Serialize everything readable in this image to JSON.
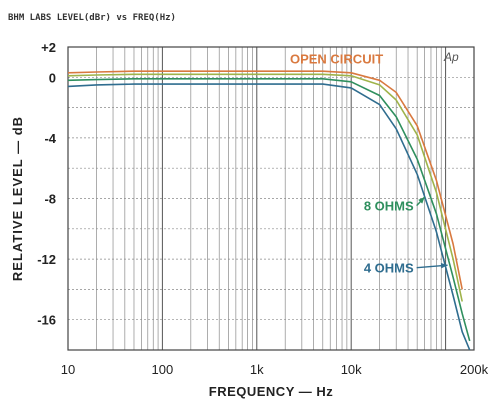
{
  "chart_data": {
    "type": "line",
    "header": "BHM LABS   LEVEL(dBr) vs FREQ(Hz)",
    "watermark": "Ap",
    "xlabel": "FREQUENCY — Hz",
    "ylabel": "RELATIVE LEVEL — dB",
    "x_scale": "log",
    "xlim": [
      10,
      200000
    ],
    "ylim": [
      -18,
      2
    ],
    "x_ticks": [
      {
        "value": 10,
        "label": "10"
      },
      {
        "value": 100,
        "label": "100"
      },
      {
        "value": 1000,
        "label": "1k"
      },
      {
        "value": 10000,
        "label": "10k"
      },
      {
        "value": 200000,
        "label": "200k"
      }
    ],
    "y_ticks": [
      {
        "value": 2,
        "label": "+2"
      },
      {
        "value": 0,
        "label": "0"
      },
      {
        "value": -4,
        "label": "-4"
      },
      {
        "value": -8,
        "label": "-8"
      },
      {
        "value": -12,
        "label": "-12"
      },
      {
        "value": -16,
        "label": "-16"
      }
    ],
    "grid": true,
    "series": [
      {
        "name": "OPEN CIRCUIT",
        "color": "#d9793f",
        "x": [
          10,
          20,
          50,
          100,
          1000,
          5000,
          10000,
          20000,
          30000,
          50000,
          80000,
          120000,
          150000
        ],
        "y": [
          0.3,
          0.35,
          0.4,
          0.4,
          0.4,
          0.4,
          0.3,
          -0.2,
          -1.0,
          -3.2,
          -6.8,
          -11.0,
          -14.0
        ]
      },
      {
        "name": "",
        "color": "#9fb34a",
        "x": [
          10,
          20,
          50,
          100,
          1000,
          5000,
          10000,
          20000,
          30000,
          50000,
          80000,
          120000,
          150000
        ],
        "y": [
          0.1,
          0.15,
          0.2,
          0.2,
          0.2,
          0.2,
          0.1,
          -0.5,
          -1.5,
          -3.8,
          -7.6,
          -12.0,
          -14.8
        ]
      },
      {
        "name": "8 OHMS",
        "color": "#2f8f5e",
        "x": [
          10,
          20,
          50,
          100,
          1000,
          5000,
          10000,
          20000,
          30000,
          50000,
          80000,
          120000,
          150000,
          180000
        ],
        "y": [
          -0.2,
          -0.15,
          -0.1,
          -0.1,
          -0.1,
          -0.1,
          -0.3,
          -1.2,
          -2.6,
          -5.4,
          -9.0,
          -13.2,
          -15.6,
          -17.4
        ]
      },
      {
        "name": "4 OHMS",
        "color": "#2f6d8f",
        "x": [
          10,
          20,
          50,
          100,
          1000,
          5000,
          10000,
          20000,
          30000,
          50000,
          80000,
          120000,
          150000,
          180000
        ],
        "y": [
          -0.6,
          -0.5,
          -0.45,
          -0.45,
          -0.45,
          -0.45,
          -0.7,
          -1.8,
          -3.4,
          -6.4,
          -10.2,
          -14.4,
          -16.8,
          -18.0
        ]
      }
    ],
    "annotations": [
      {
        "text": "OPEN CIRCUIT",
        "color": "#d9793f",
        "x": 7000,
        "y": 0.9
      },
      {
        "text": "8 OHMS",
        "color": "#2f8f5e",
        "x": 25000,
        "y": -8.8,
        "arrow_to": {
          "x": 60000,
          "y": -7.9
        }
      },
      {
        "text": "4 OHMS",
        "color": "#2f6d8f",
        "x": 25000,
        "y": -12.9,
        "arrow_to": {
          "x": 105000,
          "y": -12.4
        }
      }
    ]
  }
}
